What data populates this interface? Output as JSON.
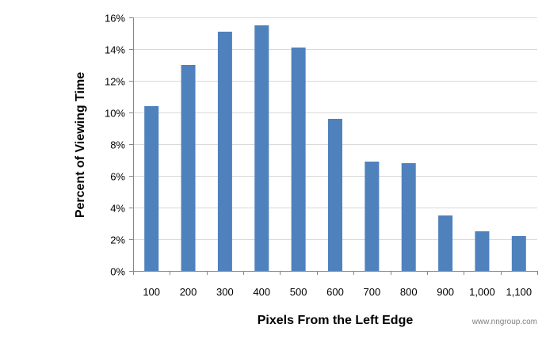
{
  "chart_data": {
    "type": "bar",
    "title": "",
    "xlabel": "Pixels From the Left Edge",
    "ylabel": "Percent of Viewing Time",
    "categories": [
      "100",
      "200",
      "300",
      "400",
      "500",
      "600",
      "700",
      "800",
      "900",
      "1,000",
      "1,100"
    ],
    "values": [
      10.4,
      13.0,
      15.1,
      15.5,
      14.1,
      9.6,
      6.9,
      6.8,
      3.5,
      2.5,
      2.2
    ],
    "ylim": [
      0,
      16
    ],
    "yticks": [
      0,
      2,
      4,
      6,
      8,
      10,
      12,
      14,
      16
    ],
    "ytick_labels": [
      "0%",
      "2%",
      "4%",
      "6%",
      "8%",
      "10%",
      "12%",
      "14%",
      "16%"
    ],
    "grid": true,
    "legend": "none",
    "bar_color": "#4F81BD"
  },
  "watermark": "www.nngroup.com",
  "colors": {
    "grid": "#d9d9d9",
    "axis": "#868686"
  }
}
